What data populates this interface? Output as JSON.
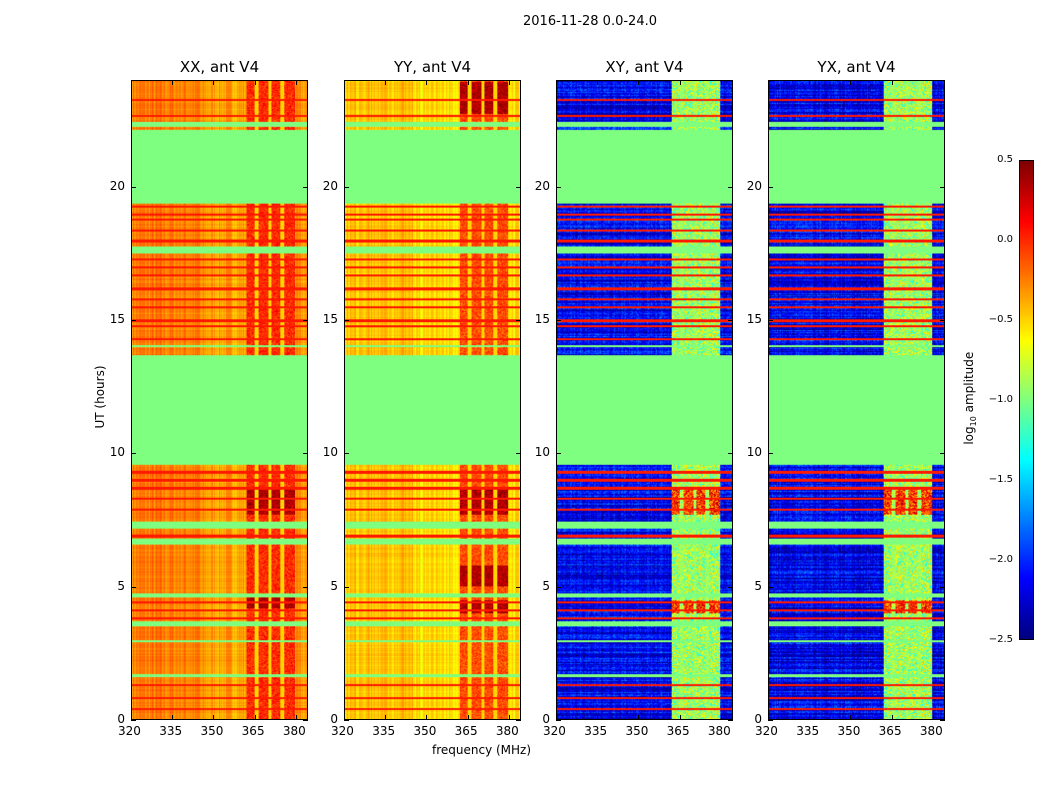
{
  "chart_data": {
    "type": "heatmap",
    "title": "2016-11-28 0.0-24.0",
    "xlabel": "frequency (MHz)",
    "ylabel": "UT (hours)",
    "xlim": [
      320,
      384.4
    ],
    "ylim": [
      0,
      24
    ],
    "xticks": [
      320,
      335,
      350,
      365,
      380
    ],
    "yticks": [
      0,
      5,
      10,
      15,
      20
    ],
    "colorbar": {
      "label_prefix": "log",
      "label_sub": "10",
      "label_suffix": " amplitude",
      "range": [
        -2.5,
        0.5
      ],
      "ticks": [
        "0.5",
        "0.0",
        "−0.5",
        "−1.0",
        "−1.5",
        "−2.0",
        "−2.5"
      ],
      "tick_values": [
        0.5,
        0.0,
        -0.5,
        -1.0,
        -1.5,
        -2.0,
        -2.5
      ],
      "colormap": "jet"
    },
    "flagged_value": -1.0,
    "flagged_intervals_hours": [
      [
        9.6,
        13.7
      ],
      [
        19.4,
        22.2
      ],
      [
        17.55,
        17.8
      ],
      [
        22.3,
        22.5
      ],
      [
        3.5,
        3.7
      ],
      [
        4.6,
        4.75
      ],
      [
        6.6,
        6.8
      ],
      [
        7.2,
        7.45
      ],
      [
        2.9,
        3.0
      ],
      [
        1.6,
        1.7
      ],
      [
        14.0,
        14.1
      ]
    ],
    "rfi_lines_hours": [
      0.4,
      0.8,
      1.3,
      3.8,
      4.1,
      4.4,
      6.9,
      7.9,
      8.3,
      8.7,
      9.0,
      9.3,
      14.3,
      14.8,
      15.0,
      15.5,
      15.8,
      16.2,
      16.7,
      17.0,
      17.3,
      18.0,
      18.4,
      18.8,
      19.0,
      19.3,
      22.7,
      23.3
    ],
    "rfi_band_mhz": [
      362,
      380
    ],
    "rfi_gaps_mhz": [
      365.8,
      370.6,
      375.2
    ],
    "panels": [
      {
        "title": "XX, ant V4",
        "base": -0.35,
        "band": 0.0,
        "hot_hours": [
          [
            7.7,
            8.7
          ],
          [
            4.2,
            4.6
          ]
        ],
        "hot": 0.35
      },
      {
        "title": "YY, ant V4",
        "base": -0.55,
        "band": -0.1,
        "hot_hours": [
          [
            7.7,
            8.7
          ],
          [
            5.0,
            5.8
          ],
          [
            4.0,
            4.5
          ],
          [
            22.8,
            24.0
          ]
        ],
        "hot": 0.35
      },
      {
        "title": "XY, ant V4",
        "base": -2.15,
        "band": -0.9,
        "hot_hours": [
          [
            7.7,
            8.7
          ],
          [
            4.0,
            4.5
          ]
        ],
        "hot": -0.05
      },
      {
        "title": "YX, ant V4",
        "base": -2.15,
        "band": -0.9,
        "hot_hours": [
          [
            7.7,
            8.7
          ],
          [
            4.0,
            4.5
          ]
        ],
        "hot": -0.05
      }
    ]
  }
}
